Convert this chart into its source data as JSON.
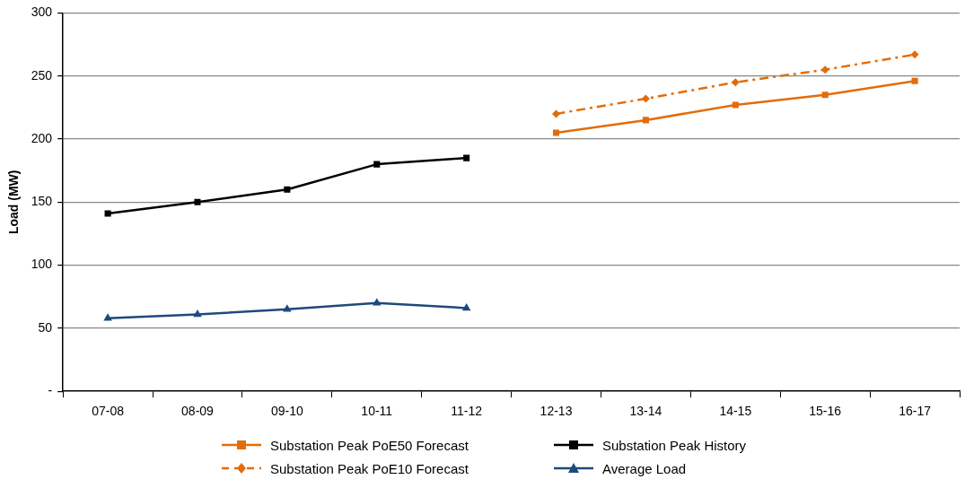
{
  "chart_data": {
    "type": "line",
    "ylabel": "Load (MW)",
    "categories": [
      "07-08",
      "08-09",
      "09-10",
      "10-11",
      "11-12",
      "12-13",
      "13-14",
      "14-15",
      "15-16",
      "16-17"
    ],
    "series": [
      {
        "name": "Substation Peak PoE50 Forecast",
        "color": "#e36c0a",
        "marker": "square",
        "line_style": "solid",
        "values": [
          null,
          null,
          null,
          null,
          null,
          205,
          215,
          227,
          235,
          246
        ]
      },
      {
        "name": "Substation Peak History",
        "color": "#000000",
        "marker": "square",
        "line_style": "solid",
        "values": [
          141,
          150,
          160,
          180,
          185,
          null,
          null,
          null,
          null,
          null
        ]
      },
      {
        "name": "Substation Peak PoE10 Forecast",
        "color": "#e36c0a",
        "marker": "diamond",
        "line_style": "dashed",
        "values": [
          null,
          null,
          null,
          null,
          null,
          220,
          232,
          245,
          255,
          267
        ]
      },
      {
        "name": "Average Load",
        "color": "#1f497d",
        "marker": "triangle",
        "line_style": "solid",
        "values": [
          58,
          61,
          65,
          70,
          66,
          null,
          null,
          null,
          null,
          null
        ]
      }
    ],
    "ylim": [
      0,
      300
    ],
    "yticks": [
      {
        "value": 0,
        "label": "-"
      },
      50,
      100,
      150,
      200,
      250,
      300
    ],
    "grid": "y",
    "legend": "bottom"
  }
}
